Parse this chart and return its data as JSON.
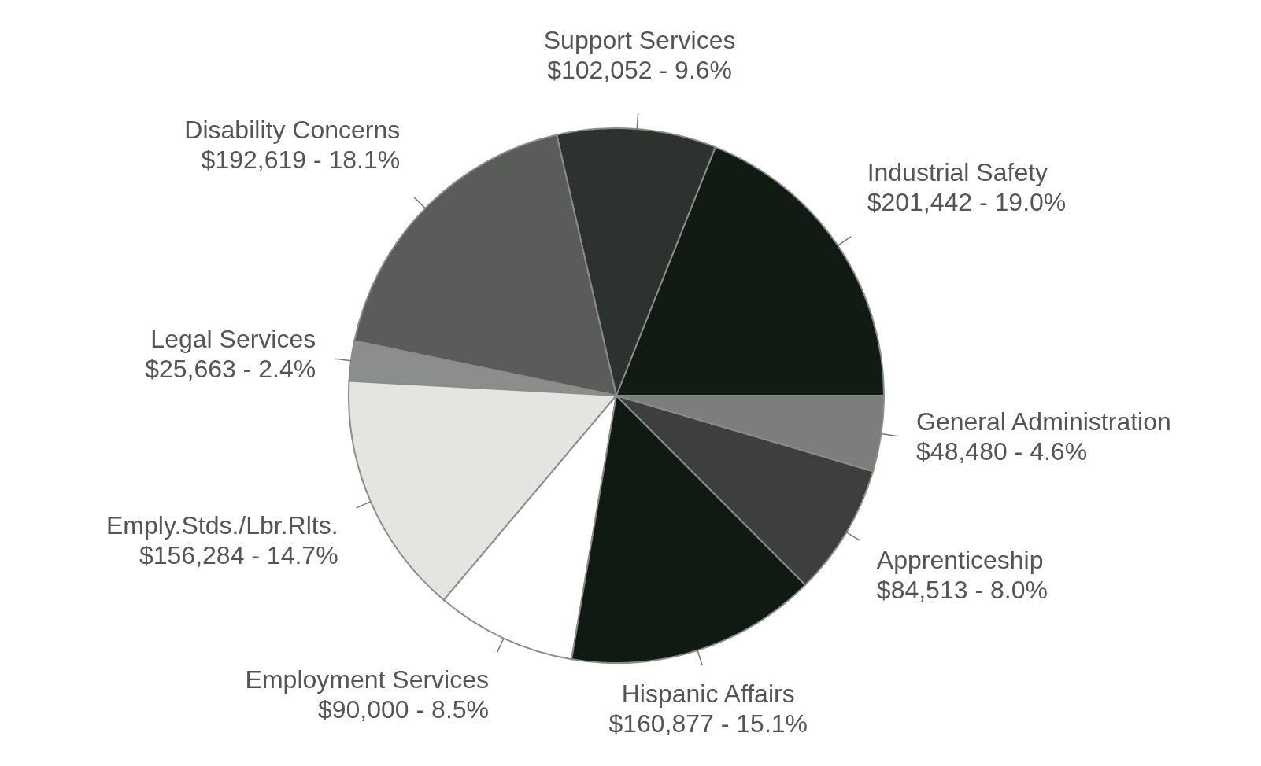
{
  "chart_data": {
    "type": "pie",
    "categories": [
      "Industrial Safety",
      "Support Services",
      "Disability Concerns",
      "Legal Services",
      "Emply.Stds./Lbr.Rlts.",
      "Employment Services",
      "Hispanic Affairs",
      "Apprenticeship",
      "General Administration"
    ],
    "values": [
      201442,
      102052,
      192619,
      25663,
      156284,
      90000,
      160877,
      84513,
      48480
    ],
    "value_labels": [
      "$201,442  -  19.0%",
      "$102,052  -  9.6%",
      "$192,619  -  18.1%",
      "$25,663  -  2.4%",
      "$156,284  -  14.7%",
      "$90,000  -  8.5%",
      "$160,877  -  15.1%",
      "$84,513  -  8.0%",
      "$48,480  -  4.6%"
    ],
    "colors": [
      "#121a14",
      "#2e322e",
      "#5a5c5a",
      "#8c8e8c",
      "#e4e4e0",
      "#ffffff",
      "#101a12",
      "#3c3f3c",
      "#7c7e7c"
    ]
  }
}
